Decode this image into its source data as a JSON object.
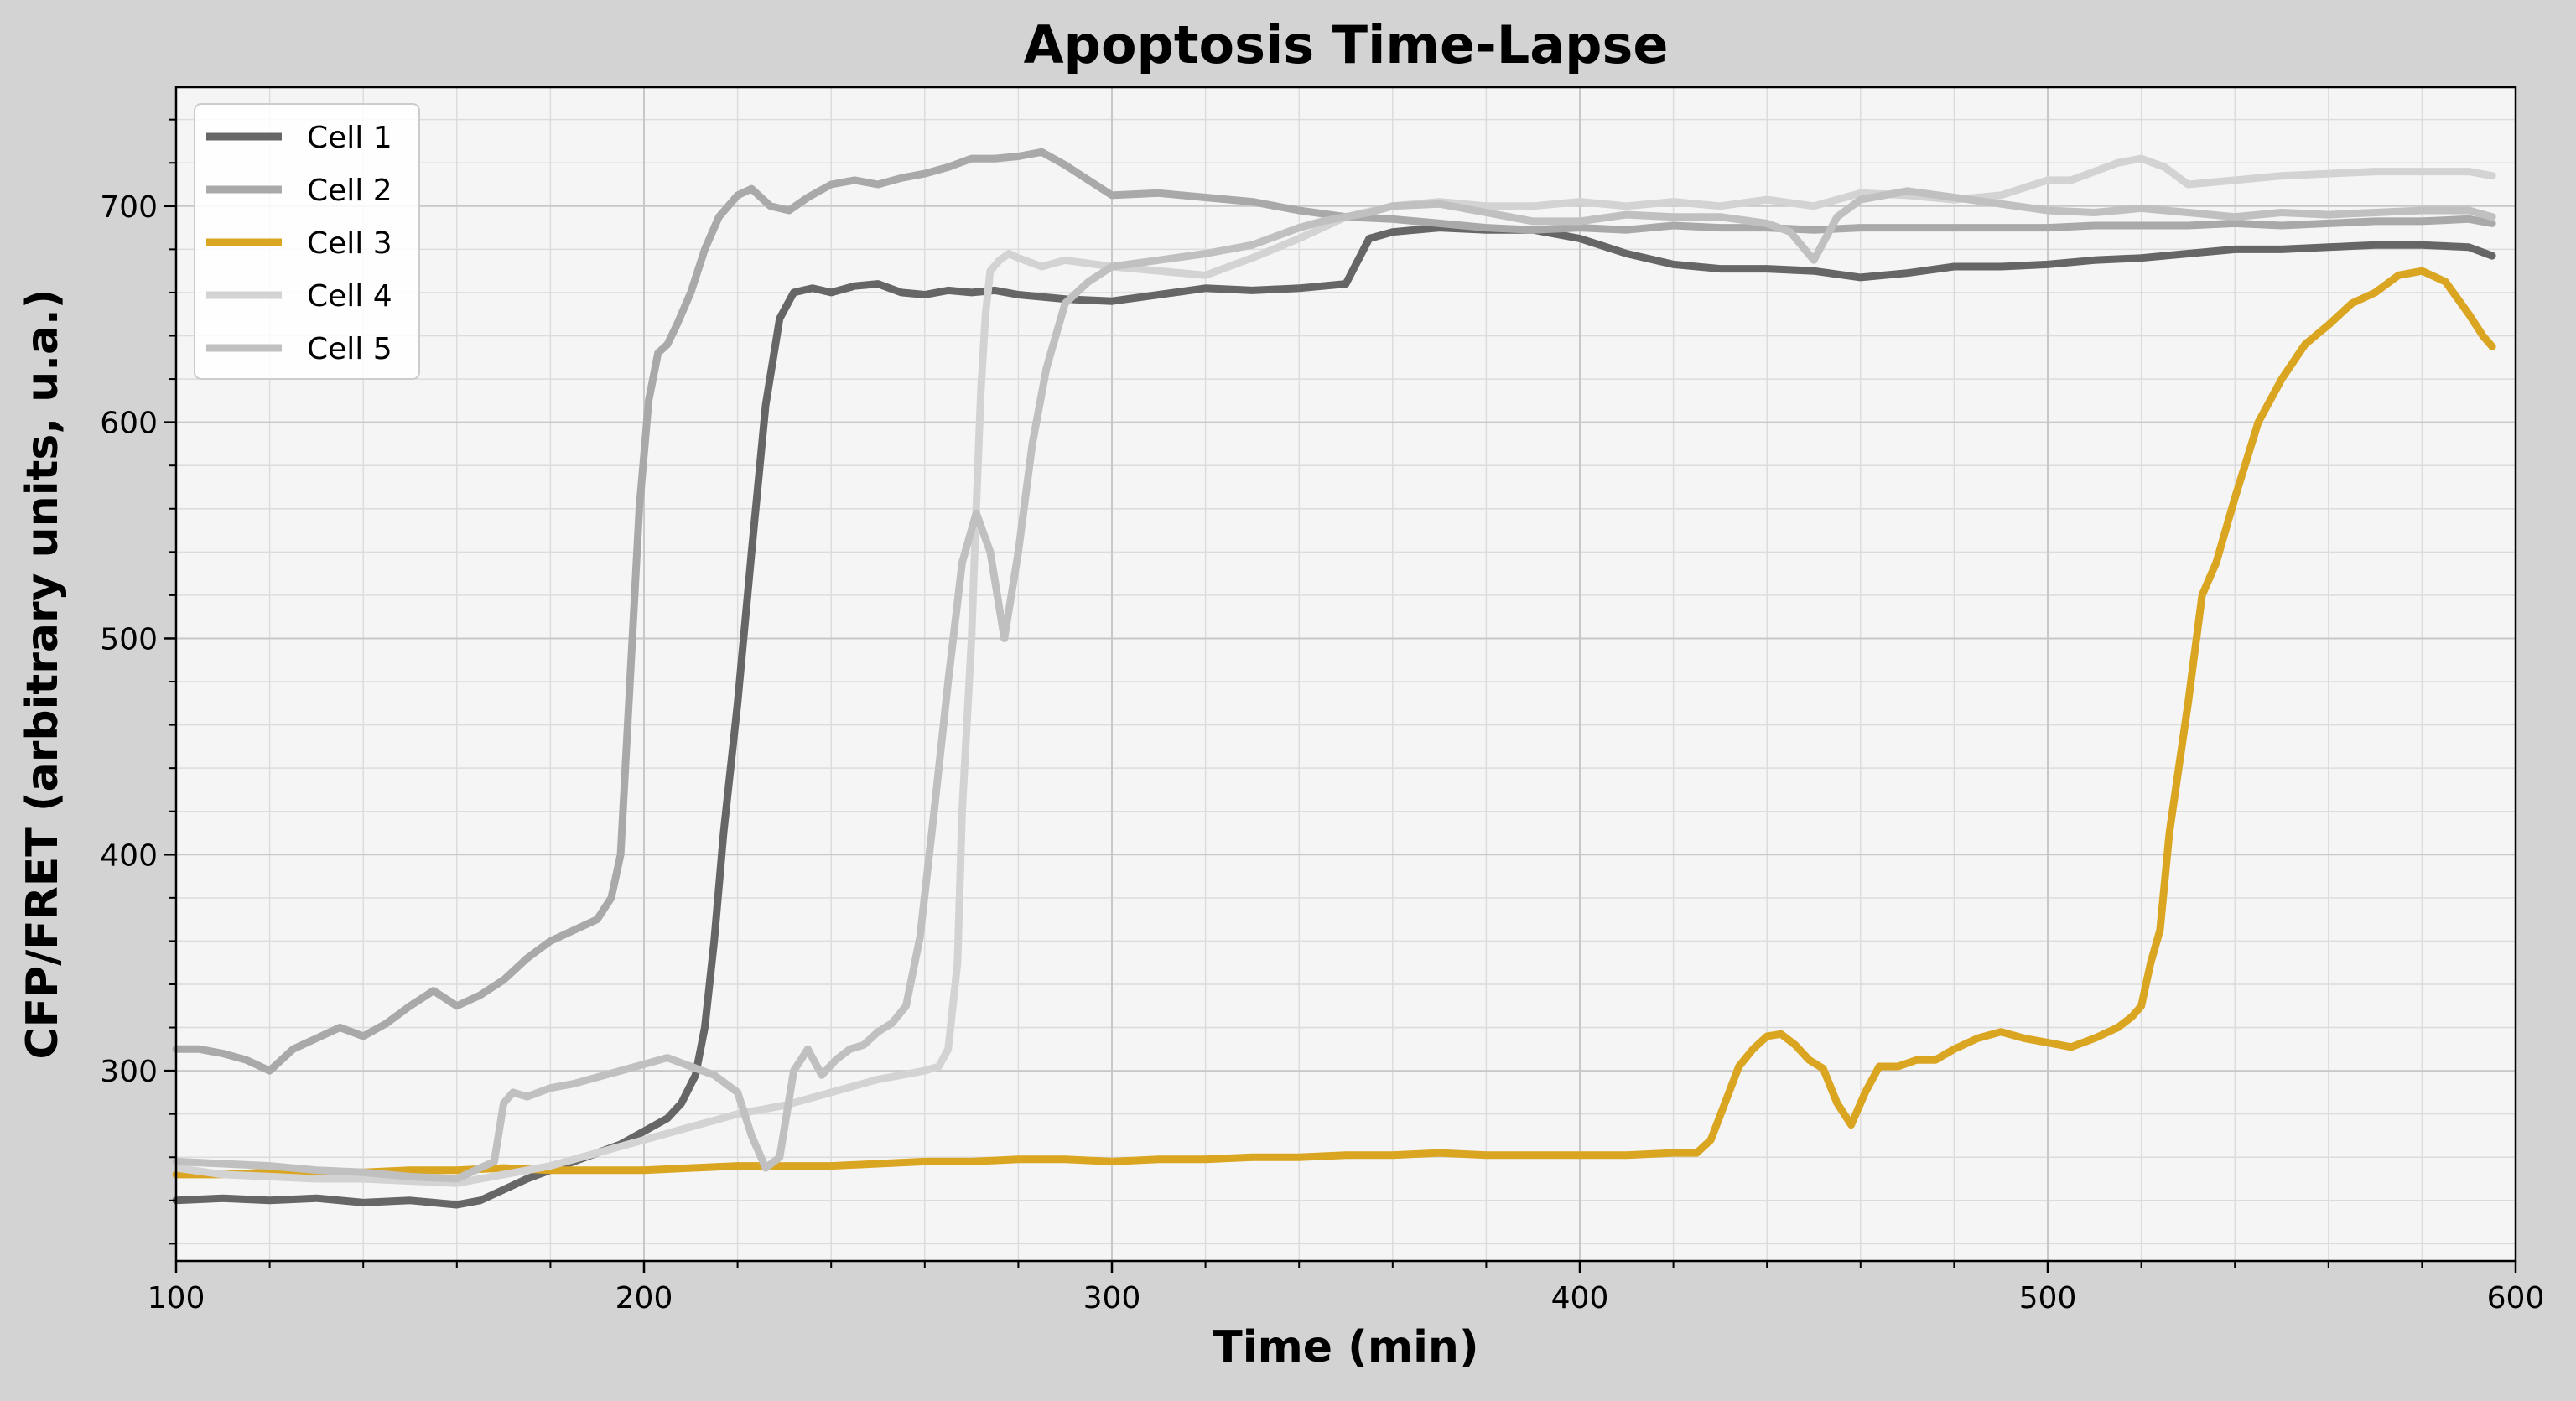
{
  "chart_data": {
    "type": "line",
    "title": "Apoptosis Time-Lapse",
    "xlabel": "Time (min)",
    "ylabel": "CFP/FRET (arbitrary units, u.a.)",
    "xlim": [
      100,
      600
    ],
    "ylim": [
      212,
      755
    ],
    "xticks": [
      100,
      200,
      300,
      400,
      500,
      600
    ],
    "yticks": [
      300,
      400,
      500,
      600,
      700
    ],
    "grid": true,
    "minor_grid": true,
    "legend_position": "top-left",
    "background": "#f5f5f5",
    "figure_background": "#d3d3d3",
    "series": [
      {
        "name": "Cell 1",
        "color": "#666666",
        "x": [
          100,
          110,
          120,
          130,
          140,
          150,
          160,
          165,
          170,
          175,
          180,
          185,
          190,
          195,
          200,
          205,
          208,
          211,
          213,
          215,
          217,
          220,
          223,
          226,
          229,
          232,
          236,
          240,
          245,
          250,
          255,
          260,
          265,
          270,
          275,
          280,
          290,
          300,
          310,
          320,
          330,
          340,
          350,
          355,
          360,
          370,
          380,
          390,
          400,
          410,
          420,
          430,
          440,
          450,
          460,
          470,
          480,
          490,
          500,
          510,
          520,
          530,
          540,
          550,
          560,
          570,
          580,
          590,
          595
        ],
        "values": [
          240,
          241,
          240,
          241,
          239,
          240,
          238,
          240,
          245,
          250,
          254,
          258,
          262,
          266,
          272,
          278,
          285,
          298,
          320,
          360,
          410,
          470,
          540,
          608,
          648,
          660,
          662,
          660,
          663,
          664,
          660,
          659,
          661,
          660,
          661,
          659,
          657,
          656,
          659,
          662,
          661,
          662,
          664,
          685,
          688,
          690,
          689,
          689,
          685,
          678,
          673,
          671,
          671,
          670,
          667,
          669,
          672,
          672,
          673,
          675,
          676,
          678,
          680,
          680,
          681,
          682,
          682,
          681,
          677
        ]
      },
      {
        "name": "Cell 2",
        "color": "#a9a9a9",
        "x": [
          100,
          105,
          110,
          115,
          120,
          125,
          130,
          135,
          140,
          145,
          150,
          155,
          160,
          165,
          170,
          175,
          180,
          185,
          190,
          193,
          195,
          197,
          199,
          201,
          203,
          205,
          207,
          210,
          213,
          216,
          220,
          223,
          227,
          231,
          235,
          240,
          245,
          250,
          255,
          260,
          265,
          270,
          275,
          280,
          285,
          290,
          295,
          300,
          310,
          320,
          330,
          340,
          350,
          360,
          370,
          380,
          390,
          400,
          410,
          420,
          430,
          440,
          450,
          460,
          470,
          480,
          490,
          500,
          510,
          520,
          530,
          540,
          550,
          560,
          570,
          580,
          590,
          595
        ],
        "values": [
          310,
          310,
          308,
          305,
          300,
          310,
          315,
          320,
          316,
          322,
          330,
          337,
          330,
          335,
          342,
          352,
          360,
          365,
          370,
          380,
          400,
          480,
          560,
          610,
          632,
          636,
          645,
          660,
          680,
          695,
          705,
          708,
          700,
          698,
          704,
          710,
          712,
          710,
          713,
          715,
          718,
          722,
          722,
          723,
          725,
          719,
          712,
          705,
          706,
          704,
          702,
          698,
          695,
          694,
          692,
          690,
          689,
          690,
          689,
          691,
          690,
          690,
          689,
          690,
          690,
          690,
          690,
          690,
          691,
          691,
          691,
          692,
          691,
          692,
          693,
          693,
          694,
          692
        ]
      },
      {
        "name": "Cell 3",
        "color": "#daa520",
        "x": [
          100,
          110,
          120,
          130,
          140,
          150,
          160,
          170,
          180,
          190,
          200,
          210,
          220,
          230,
          240,
          250,
          260,
          270,
          280,
          290,
          300,
          310,
          320,
          330,
          340,
          350,
          360,
          370,
          380,
          390,
          400,
          410,
          420,
          425,
          428,
          431,
          434,
          437,
          440,
          443,
          446,
          449,
          452,
          455,
          458,
          461,
          464,
          468,
          472,
          476,
          480,
          485,
          490,
          495,
          500,
          505,
          510,
          515,
          518,
          520,
          522,
          524,
          526,
          528,
          530,
          533,
          536,
          540,
          545,
          550,
          555,
          560,
          565,
          570,
          575,
          580,
          585,
          590,
          593,
          595
        ],
        "values": [
          252,
          252,
          253,
          253,
          253,
          254,
          254,
          255,
          254,
          254,
          254,
          255,
          256,
          256,
          256,
          257,
          258,
          258,
          259,
          259,
          258,
          259,
          259,
          260,
          260,
          261,
          261,
          262,
          261,
          261,
          261,
          261,
          262,
          262,
          268,
          285,
          302,
          310,
          316,
          317,
          312,
          305,
          301,
          285,
          275,
          290,
          302,
          302,
          305,
          305,
          310,
          315,
          318,
          315,
          313,
          311,
          315,
          320,
          325,
          330,
          350,
          365,
          410,
          440,
          470,
          520,
          535,
          565,
          600,
          620,
          636,
          645,
          655,
          660,
          668,
          670,
          665,
          650,
          640,
          635
        ]
      },
      {
        "name": "Cell 4",
        "color": "#d3d3d3",
        "x": [
          100,
          110,
          120,
          130,
          140,
          150,
          160,
          170,
          180,
          190,
          200,
          210,
          220,
          230,
          240,
          250,
          255,
          260,
          263,
          265,
          267,
          268,
          270,
          271,
          272,
          273,
          274,
          276,
          278,
          280,
          285,
          290,
          300,
          310,
          320,
          330,
          340,
          350,
          360,
          370,
          380,
          390,
          400,
          410,
          420,
          430,
          440,
          450,
          460,
          470,
          480,
          490,
          500,
          505,
          510,
          515,
          520,
          525,
          530,
          540,
          550,
          560,
          570,
          580,
          590,
          595
        ],
        "values": [
          255,
          252,
          251,
          250,
          250,
          249,
          248,
          252,
          256,
          262,
          268,
          274,
          280,
          284,
          290,
          296,
          298,
          300,
          302,
          310,
          350,
          420,
          500,
          560,
          615,
          650,
          670,
          675,
          678,
          676,
          672,
          675,
          672,
          670,
          668,
          676,
          685,
          695,
          700,
          702,
          700,
          700,
          702,
          700,
          702,
          700,
          703,
          700,
          706,
          705,
          703,
          705,
          712,
          712,
          716,
          720,
          722,
          718,
          710,
          712,
          714,
          715,
          716,
          716,
          716,
          714
        ]
      },
      {
        "name": "Cell 5",
        "color": "#c0c0c0",
        "x": [
          100,
          110,
          120,
          130,
          140,
          150,
          160,
          165,
          168,
          170,
          172,
          175,
          180,
          185,
          190,
          195,
          200,
          205,
          210,
          215,
          220,
          223,
          226,
          229,
          232,
          235,
          238,
          241,
          244,
          247,
          250,
          253,
          256,
          259,
          262,
          265,
          268,
          271,
          274,
          277,
          280,
          283,
          286,
          290,
          295,
          300,
          310,
          320,
          330,
          340,
          345,
          350,
          355,
          360,
          370,
          380,
          390,
          400,
          410,
          420,
          430,
          440,
          445,
          450,
          455,
          460,
          470,
          480,
          490,
          500,
          510,
          520,
          530,
          540,
          550,
          560,
          570,
          580,
          590,
          595
        ],
        "values": [
          258,
          257,
          256,
          254,
          253,
          251,
          250,
          255,
          258,
          285,
          290,
          288,
          292,
          294,
          297,
          300,
          303,
          306,
          302,
          298,
          290,
          270,
          255,
          260,
          300,
          310,
          298,
          305,
          310,
          312,
          318,
          322,
          330,
          362,
          420,
          480,
          535,
          558,
          540,
          500,
          540,
          590,
          625,
          655,
          665,
          672,
          675,
          678,
          682,
          690,
          693,
          695,
          697,
          700,
          701,
          697,
          693,
          693,
          696,
          695,
          695,
          692,
          688,
          675,
          695,
          703,
          707,
          704,
          701,
          698,
          697,
          699,
          697,
          695,
          697,
          696,
          697,
          698,
          698,
          695
        ]
      }
    ]
  }
}
